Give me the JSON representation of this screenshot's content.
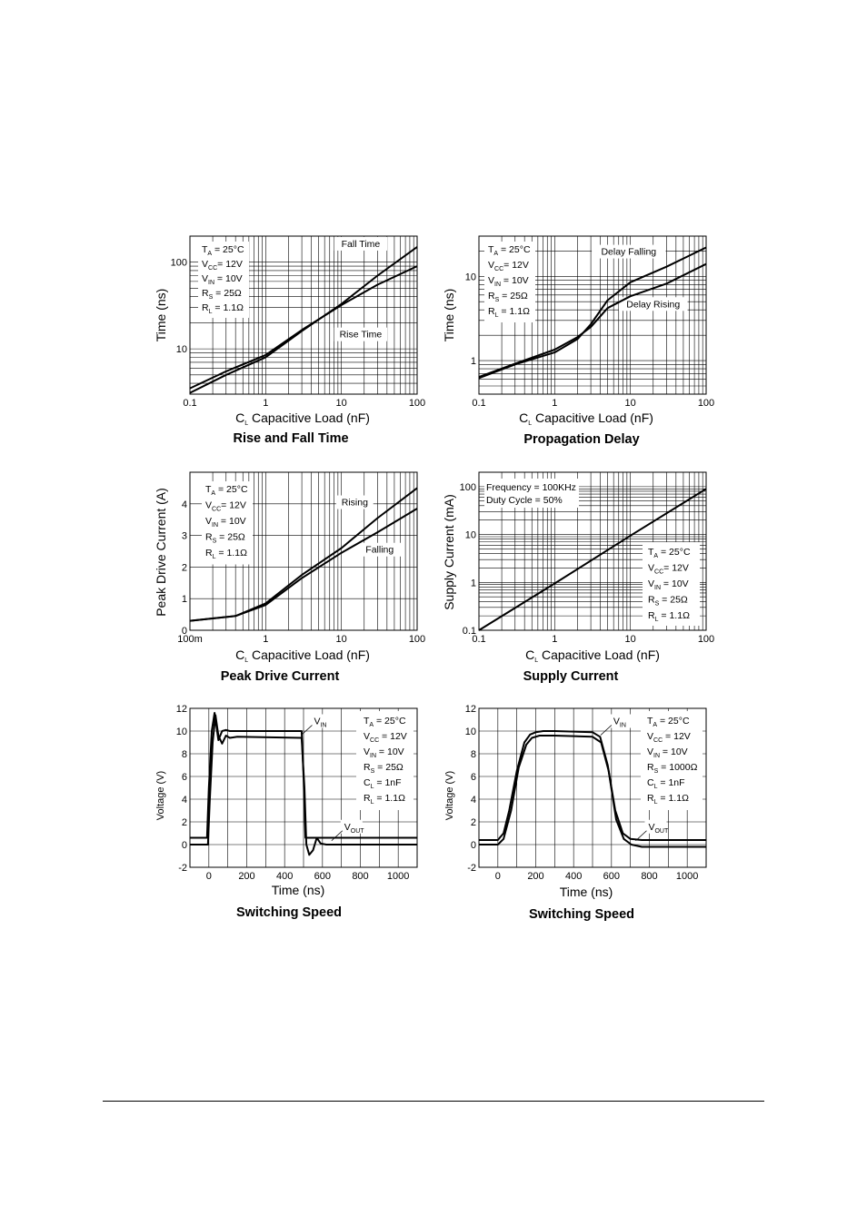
{
  "chart_data": [
    {
      "id": "rise_fall",
      "type": "line",
      "title": "Rise and Fall Time",
      "xlabel": {
        "main": "C",
        "sub": "L",
        "rest": " Capacitive Load (nF)"
      },
      "ylabel": "Time (ns)",
      "xscale": "log",
      "yscale": "log",
      "xlim": [
        0.1,
        100
      ],
      "ylim": [
        3,
        200
      ],
      "xticks": [
        {
          "v": 0.1,
          "t": "0.1"
        },
        {
          "v": 1,
          "t": "1"
        },
        {
          "v": 10,
          "t": "10"
        },
        {
          "v": 100,
          "t": "100"
        }
      ],
      "yticks": [
        {
          "v": 10,
          "t": "10"
        },
        {
          "v": 100,
          "t": "100"
        }
      ],
      "grid": true,
      "legend": [
        {
          "main": "T",
          "sub": "A",
          "rest": " = 25°C"
        },
        {
          "main": "V",
          "sub": "CC",
          "rest": "= 12V"
        },
        {
          "main": "V",
          "sub": "IN",
          "rest": " = 10V"
        },
        {
          "main": "R",
          "sub": "S",
          "rest": " = 25Ω"
        },
        {
          "main": "R",
          "sub": "L",
          "rest": " = 1.1Ω"
        }
      ],
      "legend_position": "top-left",
      "annotations": [
        {
          "text": "Fall Time",
          "x": 18,
          "y": 150
        },
        {
          "text": "Rise Time",
          "x": 18,
          "y": 13.5
        }
      ],
      "series": [
        {
          "name": "Fall Time",
          "x": [
            0.1,
            0.3,
            1,
            3,
            10,
            30,
            100
          ],
          "y": [
            3.1,
            5,
            8,
            16,
            33,
            70,
            150
          ]
        },
        {
          "name": "Rise Time",
          "x": [
            0.1,
            0.3,
            1,
            3,
            10,
            30,
            100
          ],
          "y": [
            3.5,
            5.5,
            8.5,
            16.5,
            32,
            55,
            90
          ]
        }
      ]
    },
    {
      "id": "prop_delay",
      "type": "line",
      "title": "Propagation Delay",
      "xlabel": {
        "main": "C",
        "sub": "L",
        "rest": " Capacitive Load (nF)"
      },
      "ylabel": "Time (ns)",
      "xscale": "log",
      "yscale": "log",
      "xlim": [
        0.1,
        100
      ],
      "ylim": [
        0.4,
        30
      ],
      "xticks": [
        {
          "v": 0.1,
          "t": "0.1"
        },
        {
          "v": 1,
          "t": "1"
        },
        {
          "v": 10,
          "t": "10"
        },
        {
          "v": 100,
          "t": "100"
        }
      ],
      "yticks": [
        {
          "v": 1,
          "t": "1"
        },
        {
          "v": 10,
          "t": "10"
        }
      ],
      "grid": true,
      "legend": [
        {
          "main": "T",
          "sub": "A",
          "rest": " = 25°C"
        },
        {
          "main": "V",
          "sub": "CC",
          "rest": "= 12V"
        },
        {
          "main": "V",
          "sub": "IN",
          "rest": " = 10V"
        },
        {
          "main": "R",
          "sub": "S",
          "rest": " = 25Ω"
        },
        {
          "main": "R",
          "sub": "L",
          "rest": " = 1.1Ω"
        }
      ],
      "legend_position": "top-left",
      "annotations": [
        {
          "text": "Delay Falling",
          "x": 9.5,
          "y": 18
        },
        {
          "text": "Delay Rising",
          "x": 20,
          "y": 4.3
        }
      ],
      "series": [
        {
          "name": "Delay Falling",
          "x": [
            0.1,
            0.3,
            1,
            2,
            3,
            5,
            10,
            30,
            100
          ],
          "y": [
            0.62,
            0.9,
            1.25,
            1.8,
            2.7,
            5.2,
            8.5,
            13,
            22
          ]
        },
        {
          "name": "Delay Rising",
          "x": [
            0.1,
            0.3,
            1,
            2,
            3,
            5,
            10,
            30,
            100
          ],
          "y": [
            0.64,
            0.92,
            1.35,
            1.9,
            2.5,
            4.2,
            5.8,
            8.2,
            14
          ]
        }
      ]
    },
    {
      "id": "peak_drive",
      "type": "line",
      "title": "Peak Drive Current",
      "xlabel": {
        "main": "C",
        "sub": "L",
        "rest": " Capacitive Load (nF)"
      },
      "ylabel": "Peak Drive Current (A)",
      "xscale": "log",
      "yscale": "linear",
      "xlim": [
        0.1,
        100
      ],
      "ylim": [
        0,
        5
      ],
      "xticks": [
        {
          "v": 0.1,
          "t": "100m"
        },
        {
          "v": 1,
          "t": "1"
        },
        {
          "v": 10,
          "t": "10"
        },
        {
          "v": 100,
          "t": "100"
        }
      ],
      "yticks": [
        {
          "v": 0,
          "t": "0"
        },
        {
          "v": 1,
          "t": "1"
        },
        {
          "v": 2,
          "t": "2"
        },
        {
          "v": 3,
          "t": "3"
        },
        {
          "v": 4,
          "t": "4"
        }
      ],
      "grid": true,
      "legend": [
        {
          "main": "T",
          "sub": "A",
          "rest": " = 25°C"
        },
        {
          "main": "V",
          "sub": "CC",
          "rest": "= 12V"
        },
        {
          "main": "V",
          "sub": "IN",
          "rest": " = 10V"
        },
        {
          "main": "R",
          "sub": "S",
          "rest": " = 25Ω"
        },
        {
          "main": "R",
          "sub": "L",
          "rest": " = 1.1Ω"
        }
      ],
      "legend_position": "top-left",
      "annotations": [
        {
          "text": "Rising",
          "x": 15,
          "y": 3.95
        },
        {
          "text": "Falling",
          "x": 32,
          "y": 2.45
        }
      ],
      "series": [
        {
          "name": "Rising",
          "x": [
            0.1,
            0.4,
            1,
            3,
            10,
            30,
            100
          ],
          "y": [
            0.3,
            0.45,
            0.85,
            1.75,
            2.6,
            3.55,
            4.5
          ]
        },
        {
          "name": "Falling",
          "x": [
            0.1,
            0.4,
            1,
            3,
            10,
            30,
            100
          ],
          "y": [
            0.3,
            0.45,
            0.8,
            1.65,
            2.45,
            3.1,
            3.85
          ]
        }
      ]
    },
    {
      "id": "supply_current",
      "type": "line",
      "title": "Supply Current",
      "xlabel": {
        "main": "C",
        "sub": "L",
        "rest": " Capacitive Load (nF)"
      },
      "ylabel": "Supply Current (mA)",
      "xscale": "log",
      "yscale": "log",
      "xlim": [
        0.1,
        100
      ],
      "ylim": [
        0.1,
        200
      ],
      "xticks": [
        {
          "v": 0.1,
          "t": "0.1"
        },
        {
          "v": 1,
          "t": "1"
        },
        {
          "v": 10,
          "t": "10"
        },
        {
          "v": 100,
          "t": "100"
        }
      ],
      "yticks": [
        {
          "v": 0.1,
          "t": "0.1"
        },
        {
          "v": 1,
          "t": "1"
        },
        {
          "v": 10,
          "t": "10"
        },
        {
          "v": 100,
          "t": "100"
        }
      ],
      "grid": true,
      "notes": [
        "Frequency = 100KHz",
        "Duty Cycle = 50%"
      ],
      "legend": [
        {
          "main": "T",
          "sub": "A",
          "rest": " = 25°C"
        },
        {
          "main": "V",
          "sub": "CC",
          "rest": "= 12V"
        },
        {
          "main": "V",
          "sub": "IN",
          "rest": " = 10V"
        },
        {
          "main": "R",
          "sub": "S",
          "rest": " = 25Ω"
        },
        {
          "main": "R",
          "sub": "L",
          "rest": " = 1.1Ω"
        }
      ],
      "legend_position": "bottom-right",
      "series": [
        {
          "name": "",
          "x": [
            0.1,
            1,
            10,
            100
          ],
          "y": [
            0.1,
            0.95,
            9.5,
            90
          ]
        }
      ]
    },
    {
      "id": "switching_1",
      "type": "line",
      "title": "Switching Speed",
      "xlabel": {
        "main": "Time (ns)",
        "sub": "",
        "rest": ""
      },
      "ylabel": "Voltage (V)",
      "xscale": "linear",
      "yscale": "linear",
      "xlim": [
        -100,
        1100
      ],
      "ylim": [
        -2,
        12
      ],
      "xticks": [
        {
          "v": 0,
          "t": "0"
        },
        {
          "v": 200,
          "t": "200"
        },
        {
          "v": 400,
          "t": "400"
        },
        {
          "v": 600,
          "t": "600"
        },
        {
          "v": 800,
          "t": "800"
        },
        {
          "v": 1000,
          "t": "1000"
        }
      ],
      "yticks": [
        {
          "v": -2,
          "t": "-2"
        },
        {
          "v": 0,
          "t": "0"
        },
        {
          "v": 2,
          "t": "2"
        },
        {
          "v": 4,
          "t": "4"
        },
        {
          "v": 6,
          "t": "6"
        },
        {
          "v": 8,
          "t": "8"
        },
        {
          "v": 10,
          "t": "10"
        },
        {
          "v": 12,
          "t": "12"
        }
      ],
      "grid": true,
      "legend": [
        {
          "main": "T",
          "sub": "A",
          "rest": " = 25°C"
        },
        {
          "main": "V",
          "sub": "CC",
          "rest": " = 12V"
        },
        {
          "main": "V",
          "sub": "IN",
          "rest": " = 10V"
        },
        {
          "main": "R",
          "sub": "S",
          "rest": " = 25Ω"
        },
        {
          "main": "C",
          "sub": "L",
          "rest": " = 1nF"
        },
        {
          "main": "R",
          "sub": "L",
          "rest": " = 1.1Ω"
        }
      ],
      "legend_position": "top-right",
      "annotations": [
        {
          "main": "V",
          "sub": "IN",
          "x": 555,
          "y": 10.6
        },
        {
          "main": "V",
          "sub": "OUT",
          "x": 715,
          "y": 1.3
        }
      ],
      "series": [
        {
          "name": "VIN",
          "x": [
            -100,
            -10,
            0,
            15,
            30,
            50,
            70,
            90,
            110,
            150,
            200,
            490,
            500,
            510,
            540,
            1100
          ],
          "y": [
            0.6,
            0.6,
            5,
            10,
            11.6,
            9.2,
            10,
            10.1,
            10,
            10,
            10,
            10,
            6,
            0.6,
            0.6,
            0.6
          ]
        },
        {
          "name": "VOUT",
          "x": [
            -100,
            -5,
            5,
            20,
            35,
            50,
            70,
            90,
            110,
            150,
            490,
            505,
            515,
            530,
            550,
            570,
            590,
            620,
            700,
            1100
          ],
          "y": [
            0,
            0,
            4,
            9,
            11.4,
            9.6,
            8.9,
            9.6,
            9.4,
            9.5,
            9.4,
            5,
            0,
            -0.9,
            -0.5,
            0.6,
            0.1,
            0,
            0,
            0
          ]
        }
      ]
    },
    {
      "id": "switching_2",
      "type": "line",
      "title": "Switching Speed",
      "xlabel": {
        "main": "Time (ns)",
        "sub": "",
        "rest": ""
      },
      "ylabel": "Voltage (V)",
      "xscale": "linear",
      "yscale": "linear",
      "xlim": [
        -100,
        1100
      ],
      "ylim": [
        -2,
        12
      ],
      "xticks": [
        {
          "v": 0,
          "t": "0"
        },
        {
          "v": 200,
          "t": "200"
        },
        {
          "v": 400,
          "t": "400"
        },
        {
          "v": 600,
          "t": "600"
        },
        {
          "v": 800,
          "t": "800"
        },
        {
          "v": 1000,
          "t": "1000"
        }
      ],
      "yticks": [
        {
          "v": -2,
          "t": "-2"
        },
        {
          "v": 0,
          "t": "0"
        },
        {
          "v": 2,
          "t": "2"
        },
        {
          "v": 4,
          "t": "4"
        },
        {
          "v": 6,
          "t": "6"
        },
        {
          "v": 8,
          "t": "8"
        },
        {
          "v": 10,
          "t": "10"
        },
        {
          "v": 12,
          "t": "12"
        }
      ],
      "grid": true,
      "legend": [
        {
          "main": "T",
          "sub": "A",
          "rest": " = 25°C"
        },
        {
          "main": "V",
          "sub": "CC",
          "rest": " = 12V"
        },
        {
          "main": "V",
          "sub": "IN",
          "rest": " = 10V"
        },
        {
          "main": "R",
          "sub": "S",
          "rest": " = 1000Ω"
        },
        {
          "main": "C",
          "sub": "L",
          "rest": " = 1nF"
        },
        {
          "main": "R",
          "sub": "L",
          "rest": " = 1.1Ω"
        }
      ],
      "legend_position": "top-right",
      "annotations": [
        {
          "main": "V",
          "sub": "IN",
          "x": 610,
          "y": 10.6
        },
        {
          "main": "V",
          "sub": "OUT",
          "x": 795,
          "y": 1.3
        }
      ],
      "series": [
        {
          "name": "VIN",
          "x": [
            -100,
            0,
            30,
            60,
            100,
            140,
            170,
            200,
            240,
            300,
            500,
            540,
            580,
            620,
            660,
            700,
            760,
            850,
            1100
          ],
          "y": [
            0.4,
            0.4,
            1,
            3,
            6.5,
            9,
            9.7,
            9.9,
            10,
            10,
            9.9,
            9.5,
            7,
            3,
            1,
            0.5,
            0.4,
            0.4,
            0.4
          ]
        },
        {
          "name": "VOUT",
          "x": [
            -100,
            0,
            30,
            70,
            110,
            150,
            180,
            220,
            300,
            500,
            545,
            585,
            625,
            665,
            705,
            760,
            850,
            1100
          ],
          "y": [
            0,
            0,
            0.5,
            3,
            6.8,
            8.8,
            9.4,
            9.6,
            9.6,
            9.5,
            9,
            6.5,
            2.2,
            0.5,
            0,
            -0.2,
            -0.2,
            -0.2
          ]
        }
      ]
    }
  ]
}
